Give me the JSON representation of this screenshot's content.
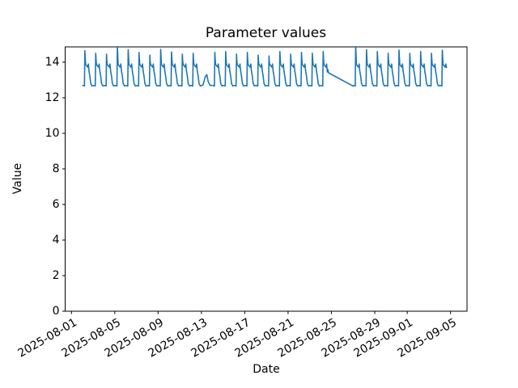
{
  "chart_data": {
    "type": "line",
    "title": "Parameter values",
    "xlabel": "Date",
    "ylabel": "Value",
    "line_color": "#1f77b4",
    "background_color": "#ffffff",
    "axis_color": "#000000",
    "legend": "none",
    "grid": false,
    "x_origin_date": "2025-08-01",
    "xlim_days": [
      -0.58,
      36.52
    ],
    "ylim": [
      0,
      14.86
    ],
    "yticks": [
      0,
      2,
      4,
      6,
      8,
      10,
      12,
      14
    ],
    "ytick_labels": [
      "0",
      "2",
      "4",
      "6",
      "8",
      "10",
      "12",
      "14"
    ],
    "xticks": [
      {
        "label": "2025-08-01",
        "day": 0
      },
      {
        "label": "2025-08-05",
        "day": 4
      },
      {
        "label": "2025-08-09",
        "day": 8
      },
      {
        "label": "2025-08-13",
        "day": 12
      },
      {
        "label": "2025-08-17",
        "day": 16
      },
      {
        "label": "2025-08-21",
        "day": 20
      },
      {
        "label": "2025-08-25",
        "day": 24
      },
      {
        "label": "2025-08-29",
        "day": 28
      },
      {
        "label": "2025-09-01",
        "day": 31
      },
      {
        "label": "2025-09-05",
        "day": 35
      }
    ],
    "series": [
      {
        "name": "parameter-values",
        "baseline": 12.66,
        "daily_cycle": [
          [
            0.05,
            "b",
            0.03
          ],
          [
            0.2,
            "b",
            0.0
          ],
          [
            0.24,
            "p",
            0.0
          ],
          [
            0.27,
            "p",
            -0.35
          ],
          [
            0.31,
            "a",
            13.88
          ],
          [
            0.42,
            "a",
            13.78
          ],
          [
            0.5,
            "a",
            13.72
          ],
          [
            0.56,
            "a",
            13.9
          ],
          [
            0.62,
            "a",
            13.5
          ],
          [
            0.7,
            "a",
            13.22
          ],
          [
            0.78,
            "a",
            12.8
          ],
          [
            0.9,
            "b",
            0.0
          ]
        ],
        "days": [
          {
            "d": 1,
            "peak": 14.65
          },
          {
            "d": 2,
            "peak": 14.5
          },
          {
            "d": 3,
            "peak": 14.45
          },
          {
            "d": 4,
            "peak": 14.88
          },
          {
            "d": 5,
            "peak": 14.7
          },
          {
            "d": 6,
            "peak": 14.55
          },
          {
            "d": 7,
            "peak": 14.4
          },
          {
            "d": 8,
            "peak": 14.72
          },
          {
            "d": 9,
            "peak": 14.58
          },
          {
            "d": 10,
            "peak": 14.45
          },
          {
            "d": 11,
            "peak": 14.5
          },
          {
            "d": 13,
            "peak": 14.55
          },
          {
            "d": 14,
            "peak": 14.6
          },
          {
            "d": 15,
            "peak": 14.45
          },
          {
            "d": 16,
            "peak": 14.55
          },
          {
            "d": 17,
            "peak": 14.4
          },
          {
            "d": 18,
            "peak": 14.35
          },
          {
            "d": 19,
            "peak": 14.6
          },
          {
            "d": 20,
            "peak": 14.45
          },
          {
            "d": 21,
            "peak": 14.55
          },
          {
            "d": 22,
            "peak": 14.5
          },
          {
            "d": 23,
            "peak": 14.6,
            "end_at": 0.56
          },
          {
            "d": 26,
            "peak": 14.88
          },
          {
            "d": 27,
            "peak": 14.7
          },
          {
            "d": 28,
            "peak": 14.6
          },
          {
            "d": 29,
            "peak": 14.5
          },
          {
            "d": 30,
            "peak": 14.68
          },
          {
            "d": 31,
            "peak": 14.5
          },
          {
            "d": 32,
            "peak": 14.6
          },
          {
            "d": 33,
            "peak": 14.5
          },
          {
            "d": 34,
            "peak": 14.68,
            "end_at": 0.56
          }
        ],
        "extra_points": [
          [
            12.15,
            12.72
          ],
          [
            12.35,
            13.18
          ],
          [
            12.5,
            13.3
          ],
          [
            12.62,
            12.92
          ],
          [
            12.8,
            12.7
          ],
          [
            23.62,
            13.45
          ],
          [
            23.68,
            13.58
          ],
          [
            23.74,
            13.4
          ],
          [
            26.0,
            12.66
          ],
          [
            34.62,
            13.7
          ]
        ]
      }
    ]
  }
}
